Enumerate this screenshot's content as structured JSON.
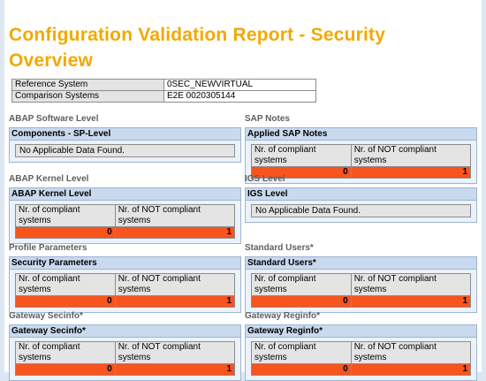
{
  "report": {
    "title": "Configuration Validation Report - Security Overview",
    "info_rows": [
      {
        "label": "Reference System",
        "value": "0SEC_NEWVIRTUAL"
      },
      {
        "label": "Comparison Systems",
        "value": "E2E 0020305144"
      }
    ]
  },
  "labels": {
    "compliant": "Nr. of compliant systems",
    "not_compliant": "Nr. of NOT compliant systems",
    "no_data": "No Applicable Data Found."
  },
  "sections": {
    "abap_sw": {
      "title": "ABAP Software Level",
      "panel": "Components - SP-Level"
    },
    "sap_notes": {
      "title": "SAP Notes",
      "panel": "Applied SAP Notes",
      "compliant": "0",
      "not_compliant": "1"
    },
    "abap_kernel": {
      "title": "ABAP Kernel Level",
      "panel": "ABAP Kernel Level",
      "compliant": "0",
      "not_compliant": "1"
    },
    "igs": {
      "title": "IGS Level",
      "panel": "IGS Level"
    },
    "profile": {
      "title": "Profile Parameters",
      "panel": "Security Parameters",
      "compliant": "0",
      "not_compliant": "1"
    },
    "std_users": {
      "title": "Standard Users*",
      "panel": "Standard Users*",
      "compliant": "0",
      "not_compliant": "1"
    },
    "gw_secinfo": {
      "title": "Gateway Secinfo*",
      "panel": "Gateway Secinfo*",
      "compliant": "0",
      "not_compliant": "1"
    },
    "gw_reginfo": {
      "title": "Gateway Reginfo*",
      "panel": "Gateway Reginfo*",
      "compliant": "0",
      "not_compliant": "1"
    }
  },
  "colors": {
    "title": "#f2a900",
    "panel_header": "#c9d9ee",
    "not_compliant_cell": "#f7541e",
    "background": "#dde7f1"
  }
}
